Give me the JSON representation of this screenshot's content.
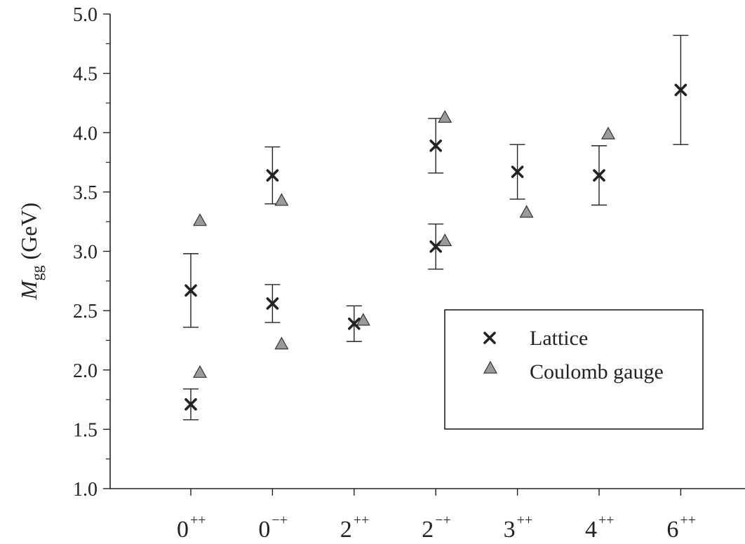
{
  "chart_data": {
    "type": "scatter",
    "title": "",
    "xlabel": "",
    "ylabel": {
      "symbol": "M",
      "subscript": "gg",
      "unit": "(GeV)"
    },
    "ylim": [
      1.0,
      5.0
    ],
    "yticks": [
      "1.0",
      "1.5",
      "2.0",
      "2.5",
      "3.0",
      "3.5",
      "4.0",
      "4.5",
      "5.0"
    ],
    "categories": [
      {
        "base": "0",
        "sup": "++"
      },
      {
        "base": "0",
        "sup": "−+"
      },
      {
        "base": "2",
        "sup": "++"
      },
      {
        "base": "2",
        "sup": "−+"
      },
      {
        "base": "3",
        "sup": "++"
      },
      {
        "base": "4",
        "sup": "++"
      },
      {
        "base": "6",
        "sup": "++"
      }
    ],
    "grid": false,
    "legend_position": "lower-right",
    "series": [
      {
        "name": "Lattice",
        "marker": "x",
        "color": "#222222",
        "points": [
          {
            "cat": 0,
            "y": 1.71,
            "err_low": 1.58,
            "err_high": 1.84
          },
          {
            "cat": 0,
            "y": 2.67,
            "err_low": 2.36,
            "err_high": 2.98
          },
          {
            "cat": 1,
            "y": 2.56,
            "err_low": 2.4,
            "err_high": 2.72
          },
          {
            "cat": 1,
            "y": 3.64,
            "err_low": 3.4,
            "err_high": 3.88
          },
          {
            "cat": 2,
            "y": 2.39,
            "err_low": 2.24,
            "err_high": 2.54
          },
          {
            "cat": 3,
            "y": 3.04,
            "err_low": 2.85,
            "err_high": 3.23
          },
          {
            "cat": 3,
            "y": 3.89,
            "err_low": 3.66,
            "err_high": 4.12
          },
          {
            "cat": 4,
            "y": 3.67,
            "err_low": 3.44,
            "err_high": 3.9
          },
          {
            "cat": 5,
            "y": 3.64,
            "err_low": 3.39,
            "err_high": 3.89
          },
          {
            "cat": 6,
            "y": 4.36,
            "err_low": 3.9,
            "err_high": 4.82
          }
        ]
      },
      {
        "name": "Coulomb gauge",
        "marker": "triangle",
        "color": "#9a9a9a",
        "points": [
          {
            "cat": 0,
            "y": 1.98
          },
          {
            "cat": 0,
            "y": 3.26
          },
          {
            "cat": 1,
            "y": 2.22
          },
          {
            "cat": 1,
            "y": 3.43
          },
          {
            "cat": 2,
            "y": 2.42
          },
          {
            "cat": 3,
            "y": 3.09
          },
          {
            "cat": 3,
            "y": 4.13
          },
          {
            "cat": 4,
            "y": 3.33
          },
          {
            "cat": 5,
            "y": 3.99
          }
        ]
      }
    ]
  }
}
